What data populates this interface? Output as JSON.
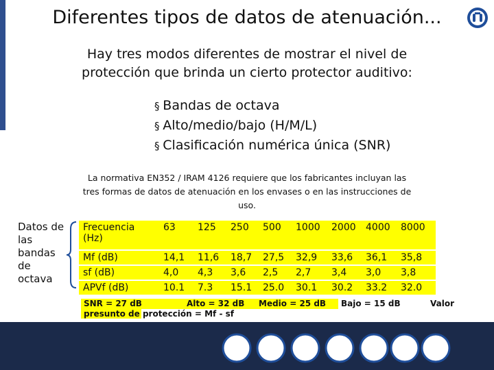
{
  "header": {
    "title": "Diferentes tipos de datos de atenuación..."
  },
  "intro": "Hay tres modos diferentes de mostrar el nivel de protección que brinda un cierto protector auditivo:",
  "bullets": [
    "Bandas de octava",
    "Alto/medio/bajo (H/M/L)",
    "Clasificación numérica única (SNR)"
  ],
  "note": "La normativa EN352  / IRAM 4126 requiere que los fabricantes incluyan las tres formas de datos de atenuación en los envases o en las instrucciones de uso.",
  "side_label": "Datos de las bandas de octava",
  "table": {
    "rows": [
      [
        "Frecuencia (Hz)",
        "63",
        "125",
        "250",
        "500",
        "1000",
        "2000",
        "4000",
        "8000"
      ],
      [
        "Mf (dB)",
        "14,1",
        "11,6",
        "18,7",
        "27,5",
        "32,9",
        "33,6",
        "36,1",
        "35,8"
      ],
      [
        "sf (dB)",
        "4,0",
        "4,3",
        "3,6",
        "2,5",
        "2,7",
        "3,4",
        "3,0",
        "3,8"
      ],
      [
        "APVf (dB)",
        "10.1",
        "7.3",
        "15.1",
        "25.0",
        "30.1",
        "30.2",
        "33.2",
        "32.0"
      ]
    ]
  },
  "footer": {
    "snr": "SNR = 27 dB",
    "alto": "Alto = 32 dB",
    "medio": "Medio = 25 dB",
    "bajo": "Bajo = 15 dB",
    "valor": "Valor",
    "presunto": "presunto de protección = Mf - sf"
  }
}
